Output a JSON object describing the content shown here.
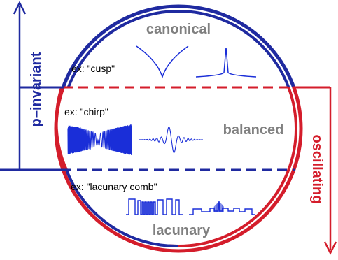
{
  "regions": {
    "top": "canonical",
    "middle": "balanced",
    "bottom": "lacunary"
  },
  "examples": {
    "cusp": "ex: \"cusp\"",
    "chirp": "ex: \"chirp\"",
    "lacunary_comb": "ex: \"lacunary comb\""
  },
  "axes": {
    "left": "p–invariant",
    "right": "oscillating"
  },
  "colors": {
    "blue": "#1f2aa0",
    "red": "#d41d2b",
    "gray": "#808080",
    "signal": "#1a2ed8"
  }
}
